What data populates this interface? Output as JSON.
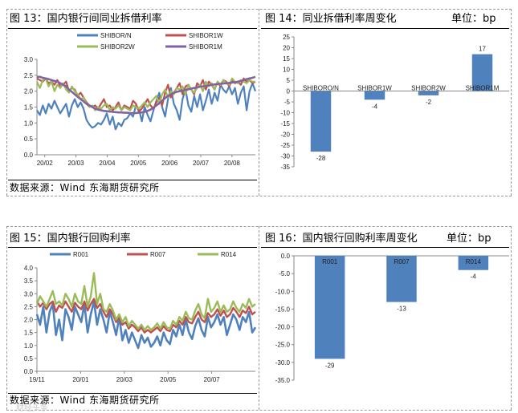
{
  "panels": {
    "p13": {
      "title": "图 13：国内银行间同业拆借利率"
    },
    "p14": {
      "title": "图 14：同业拆借利率周变化",
      "unit": "单位：bp"
    },
    "p15": {
      "title": "图 15：国内银行回购利率"
    },
    "p16": {
      "title": "图 16：国内银行回购利率周变化",
      "unit": "单位：bp"
    }
  },
  "source_top": "数据来源：Wind   东海期货研究所",
  "source_bottom": "数据来源：Wind   东海期货研究所",
  "watermark": "财经头条",
  "colors": {
    "blue": "#4f81bd",
    "red": "#c0504d",
    "green": "#9bbb59",
    "purple": "#8064a2",
    "bar": "#4f81bd",
    "dash": "#9a9a9a"
  },
  "chart_data": [
    {
      "id": "chart13",
      "type": "line",
      "title": "国内银行间同业拆借利率",
      "x_ticks": [
        "20/02",
        "20/03",
        "20/04",
        "20/05",
        "20/06",
        "20/07",
        "20/08"
      ],
      "ylim": [
        0,
        3.0
      ],
      "yticks": [
        "0.0",
        "0.5",
        "1.0",
        "1.5",
        "2.0",
        "2.5",
        "3.0"
      ],
      "legend_position": "top",
      "series": [
        {
          "name": "SHIBOR/N",
          "color": "#4f81bd",
          "values": [
            1.4,
            1.25,
            1.55,
            1.3,
            1.6,
            1.45,
            1.7,
            1.5,
            1.3,
            1.45,
            1.6,
            1.2,
            1.55,
            1.75,
            1.5,
            1.65,
            1.45,
            1.1,
            0.95,
            0.85,
            0.9,
            1.0,
            0.95,
            1.1,
            1.3,
            0.95,
            1.2,
            0.8,
            1.0,
            0.9,
            1.1,
            1.15,
            1.3,
            1.2,
            1.55,
            1.45,
            1.05,
            1.5,
            1.25,
            1.05,
            1.4,
            1.7,
            1.95,
            1.5,
            1.2,
            1.75,
            2.1,
            1.6,
            1.4,
            1.1,
            1.75,
            2.05,
            1.55,
            1.35,
            1.85,
            1.5,
            1.9,
            1.4,
            1.7,
            2.05,
            1.6,
            1.95,
            1.7,
            2.2,
            2.05,
            1.95,
            2.15,
            1.9,
            2.1,
            1.6,
            1.95,
            2.15,
            1.4,
            2.0,
            2.25,
            2.0
          ]
        },
        {
          "name": "SHIBOR1W",
          "color": "#c0504d",
          "values": [
            2.4,
            2.35,
            2.3,
            2.4,
            2.25,
            2.3,
            2.2,
            2.35,
            2.15,
            2.2,
            2.3,
            2.0,
            2.1,
            2.05,
            1.85,
            1.95,
            1.8,
            1.65,
            1.55,
            1.5,
            1.55,
            1.45,
            1.6,
            1.75,
            1.5,
            1.55,
            1.4,
            1.5,
            1.65,
            1.4,
            1.55,
            1.5,
            1.45,
            1.7,
            1.6,
            1.35,
            1.45,
            1.6,
            1.75,
            1.55,
            1.45,
            1.65,
            1.8,
            1.55,
            1.95,
            2.2,
            1.8,
            1.95,
            2.1,
            2.25,
            1.9,
            2.15,
            2.2,
            2.05,
            1.9,
            2.25,
            2.15,
            2.35,
            2.05,
            2.3,
            2.2,
            2.05,
            2.3,
            2.15,
            2.35,
            2.3,
            2.15,
            2.35,
            2.25,
            2.3,
            2.2,
            2.4,
            2.3,
            2.35,
            2.25,
            2.3
          ]
        },
        {
          "name": "SHIBOR2W",
          "color": "#9bbb59",
          "values": [
            2.3,
            2.1,
            2.35,
            2.4,
            2.15,
            2.3,
            2.0,
            2.2,
            2.1,
            2.25,
            2.05,
            1.95,
            2.15,
            2.0,
            1.9,
            1.75,
            1.8,
            1.6,
            1.5,
            1.55,
            1.4,
            1.5,
            1.45,
            1.55,
            1.6,
            1.4,
            1.5,
            1.45,
            1.55,
            1.4,
            1.5,
            1.45,
            1.4,
            1.55,
            1.5,
            1.45,
            1.55,
            1.65,
            1.5,
            1.65,
            1.75,
            1.85,
            1.6,
            1.9,
            2.05,
            1.8,
            2.0,
            1.9,
            2.1,
            2.05,
            2.15,
            1.9,
            2.2,
            2.05,
            1.95,
            2.1,
            2.2,
            2.0,
            2.3,
            2.15,
            2.25,
            2.05,
            2.3,
            2.2,
            2.35,
            2.25,
            2.2,
            2.4,
            2.3,
            2.25,
            2.35,
            2.3,
            2.25,
            2.35,
            2.3,
            2.3
          ]
        },
        {
          "name": "SHIBOR1M",
          "color": "#8064a2",
          "values": [
            2.45,
            2.45,
            2.42,
            2.4,
            2.38,
            2.35,
            2.32,
            2.3,
            2.25,
            2.2,
            2.15,
            2.05,
            1.98,
            1.9,
            1.82,
            1.75,
            1.68,
            1.6,
            1.55,
            1.5,
            1.45,
            1.42,
            1.4,
            1.38,
            1.37,
            1.36,
            1.35,
            1.34,
            1.33,
            1.33,
            1.32,
            1.32,
            1.31,
            1.31,
            1.31,
            1.32,
            1.33,
            1.35,
            1.38,
            1.42,
            1.48,
            1.55,
            1.62,
            1.7,
            1.78,
            1.85,
            1.9,
            1.95,
            1.98,
            2.0,
            2.02,
            2.04,
            2.06,
            2.08,
            2.1,
            2.12,
            2.14,
            2.15,
            2.17,
            2.18,
            2.2,
            2.21,
            2.22,
            2.23,
            2.24,
            2.25,
            2.26,
            2.27,
            2.28,
            2.3,
            2.32,
            2.35,
            2.38,
            2.4,
            2.42,
            2.45
          ]
        }
      ]
    },
    {
      "id": "chart14",
      "type": "bar",
      "title": "同业拆借利率周变化",
      "categories": [
        "SHIBORO/N",
        "SHIBOR1W",
        "SHIBOR2W",
        "SHIBOR1M"
      ],
      "values": [
        -28,
        -4,
        -2,
        17
      ],
      "value_labels": [
        "-28",
        "-4",
        "-2",
        "17"
      ],
      "ylim": [
        -35,
        25
      ],
      "yticks": [
        "-35",
        "-30",
        "-25",
        "-20",
        "-15",
        "-10",
        "-5",
        "0",
        "5",
        "10",
        "15",
        "20",
        "25"
      ]
    },
    {
      "id": "chart15",
      "type": "line",
      "title": "国内银行回购利率",
      "x_ticks": [
        "19/11",
        "20/01",
        "20/03",
        "20/05",
        "20/07"
      ],
      "ylim": [
        0,
        4.0
      ],
      "yticks": [
        "0.0",
        "0.5",
        "1.0",
        "1.5",
        "2.0",
        "2.5",
        "3.0",
        "3.5",
        "4.0"
      ],
      "legend_position": "top",
      "series": [
        {
          "name": "R001",
          "color": "#4f81bd",
          "values": [
            2.2,
            1.8,
            2.5,
            1.5,
            2.3,
            2.6,
            1.4,
            2.0,
            1.2,
            2.4,
            2.1,
            1.6,
            2.5,
            2.2,
            1.9,
            2.6,
            1.5,
            2.2,
            2.7,
            1.8,
            2.4,
            2.0,
            1.5,
            2.3,
            1.9,
            1.4,
            2.1,
            1.2,
            1.6,
            1.1,
            1.5,
            1.2,
            0.9,
            1.4,
            1.1,
            1.3,
            0.95,
            1.1,
            1.35,
            1.0,
            1.5,
            1.2,
            1.05,
            1.6,
            1.35,
            1.8,
            1.4,
            2.0,
            1.5,
            1.25,
            1.75,
            2.05,
            1.6,
            1.35,
            2.1,
            1.7,
            1.9,
            2.2,
            1.8,
            2.1,
            1.4,
            1.8,
            2.2,
            2.0,
            1.6,
            2.1,
            1.9,
            2.3,
            1.5,
            1.7
          ]
        },
        {
          "name": "R007",
          "color": "#c0504d",
          "values": [
            2.7,
            2.5,
            2.65,
            2.4,
            2.6,
            2.7,
            2.3,
            2.55,
            2.45,
            2.7,
            2.5,
            2.3,
            2.65,
            2.5,
            2.4,
            2.7,
            2.35,
            2.6,
            2.8,
            2.45,
            2.6,
            2.3,
            2.1,
            2.4,
            2.2,
            1.9,
            2.1,
            1.8,
            1.9,
            1.65,
            1.8,
            1.7,
            1.55,
            1.7,
            1.5,
            1.6,
            1.5,
            1.6,
            1.7,
            1.55,
            1.75,
            1.6,
            1.55,
            1.8,
            1.7,
            1.95,
            1.8,
            2.1,
            1.9,
            1.85,
            2.1,
            2.3,
            2.0,
            1.9,
            2.25,
            2.1,
            2.2,
            2.4,
            2.15,
            2.35,
            2.1,
            2.2,
            2.45,
            2.3,
            2.1,
            2.35,
            2.25,
            2.5,
            2.2,
            2.3
          ]
        },
        {
          "name": "R014",
          "color": "#9bbb59",
          "values": [
            2.6,
            2.9,
            2.7,
            2.5,
            2.8,
            3.1,
            2.6,
            2.7,
            2.55,
            3.0,
            2.8,
            2.5,
            3.0,
            2.7,
            2.6,
            3.3,
            2.5,
            2.9,
            3.8,
            2.6,
            3.0,
            2.4,
            2.3,
            2.6,
            2.35,
            2.0,
            2.2,
            1.9,
            2.1,
            1.75,
            1.95,
            1.8,
            1.65,
            1.8,
            1.6,
            1.75,
            1.6,
            1.7,
            1.85,
            1.65,
            1.9,
            1.7,
            1.65,
            1.95,
            1.8,
            2.1,
            1.95,
            2.3,
            2.05,
            2.0,
            2.35,
            2.6,
            2.2,
            2.05,
            2.8,
            2.3,
            2.45,
            2.7,
            2.3,
            2.55,
            2.3,
            2.4,
            2.7,
            2.45,
            2.3,
            2.6,
            2.45,
            2.8,
            2.5,
            2.6
          ]
        }
      ]
    },
    {
      "id": "chart16",
      "type": "bar",
      "title": "国内银行回购利率周变化",
      "categories": [
        "R001",
        "R007",
        "R014"
      ],
      "values": [
        -29,
        -13,
        -4
      ],
      "value_labels": [
        "-29",
        "-13",
        "-4"
      ],
      "ylim": [
        -35,
        0
      ],
      "yticks": [
        "-35.0",
        "-30.0",
        "-25.0",
        "-20.0",
        "-15.0",
        "-10.0",
        "-5.0",
        "0.0"
      ]
    }
  ]
}
